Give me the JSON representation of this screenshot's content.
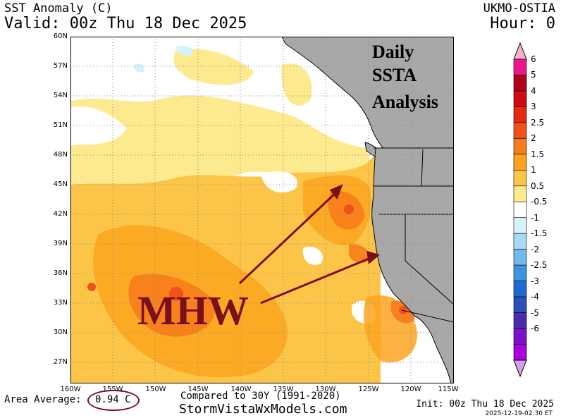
{
  "header": {
    "title": "SST Anomaly (C)",
    "valid": "Valid: 00z Thu 18 Dec 2025",
    "model": "UKMO-OSTIA",
    "hour": "Hour: 0"
  },
  "map": {
    "annotation_text": [
      "Daily",
      "SSTA",
      "Analysis"
    ],
    "mhw_label": "MHW",
    "land_color": "#a8a8a8",
    "coast_color": "#000000",
    "grid_color": "#8a8a8a",
    "arrow_color": "#7a0f1e"
  },
  "lat_ticks": [
    "60N",
    "57N",
    "54N",
    "51N",
    "48N",
    "45N",
    "42N",
    "39N",
    "36N",
    "33N",
    "30N",
    "27N"
  ],
  "lon_ticks": [
    "160W",
    "155W",
    "150W",
    "145W",
    "140W",
    "135W",
    "130W",
    "125W",
    "120W",
    "115W"
  ],
  "colorbar": {
    "labels": [
      "6",
      "5",
      "4",
      "3",
      "2.5",
      "2",
      "1.5",
      "1",
      "0.5",
      "-0.5",
      "-1",
      "-1.5",
      "-2",
      "-2.5",
      "-3",
      "-4",
      "-5",
      "-6"
    ],
    "colors": [
      "#e8188c",
      "#b0001c",
      "#cf0a12",
      "#e52a12",
      "#f1501a",
      "#f77c1c",
      "#fba31e",
      "#fcc547",
      "#fde98e",
      "#ffffff",
      "#d6f2fb",
      "#a9d9f3",
      "#6fb9ec",
      "#3f94e0",
      "#1f6bd2",
      "#2850b8",
      "#4b2aac",
      "#7a12c8",
      "#a900e0"
    ],
    "top_cap": "#f9b1c8",
    "bottom_cap": "#d59cf0"
  },
  "footer": {
    "area_label": "Area Average:",
    "area_value": "0.94 C",
    "compared": "Compared to 30Y (1991-2020)",
    "site": "StormVistaWxModels.com",
    "init": "Init: 00z Thu 18 Dec 2025",
    "issued": "2025-12-19-02:30 ET"
  }
}
